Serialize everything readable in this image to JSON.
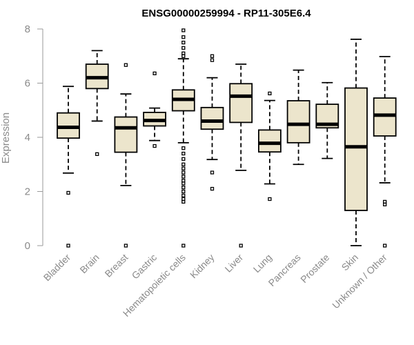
{
  "chart_data": {
    "type": "boxplot",
    "title": "ENSG00000259994 - RP11-305E6.4",
    "xlabel": "",
    "ylabel": "Expression",
    "ylim": [
      0,
      8
    ],
    "yticks": [
      0,
      2,
      4,
      6,
      8
    ],
    "grid": false,
    "box_fill": "#ece5cc",
    "categories": [
      "Bladder",
      "Brain",
      "Breast",
      "Gastric",
      "Hematopoietic cells",
      "Kidney",
      "Liver",
      "Lung",
      "Pancreas",
      "Prostate",
      "Skin",
      "Unknown / Other"
    ],
    "boxes": [
      {
        "category": "Bladder",
        "min": 2.68,
        "q1": 3.97,
        "median": 4.37,
        "q3": 4.9,
        "max": 5.88,
        "outliers": [
          1.95,
          0.0
        ]
      },
      {
        "category": "Brain",
        "min": 4.6,
        "q1": 5.8,
        "median": 6.2,
        "q3": 6.7,
        "max": 7.2,
        "outliers": [
          3.38
        ]
      },
      {
        "category": "Breast",
        "min": 2.22,
        "q1": 3.45,
        "median": 4.35,
        "q3": 4.75,
        "max": 5.6,
        "outliers": [
          6.67,
          0.0
        ]
      },
      {
        "category": "Gastric",
        "min": 3.88,
        "q1": 4.42,
        "median": 4.62,
        "q3": 4.92,
        "max": 5.08,
        "outliers": [
          6.36,
          3.68
        ]
      },
      {
        "category": "Hematopoietic cells",
        "min": 3.8,
        "q1": 4.98,
        "median": 5.4,
        "q3": 5.75,
        "max": 6.9,
        "outliers": [
          7.95,
          7.7,
          7.5,
          7.3,
          7.1,
          7.0,
          3.6,
          3.4,
          3.2,
          3.0,
          2.85,
          2.7,
          2.55,
          2.4,
          2.3,
          2.15,
          2.0,
          1.85,
          1.72,
          1.62,
          0.0
        ]
      },
      {
        "category": "Kidney",
        "min": 3.18,
        "q1": 4.3,
        "median": 4.6,
        "q3": 5.1,
        "max": 6.2,
        "outliers": [
          7.0,
          6.85,
          2.7,
          2.1
        ]
      },
      {
        "category": "Liver",
        "min": 2.78,
        "q1": 4.55,
        "median": 5.52,
        "q3": 5.98,
        "max": 6.7,
        "outliers": [
          0.0
        ]
      },
      {
        "category": "Lung",
        "min": 2.28,
        "q1": 3.46,
        "median": 3.78,
        "q3": 4.27,
        "max": 5.36,
        "outliers": [
          5.62,
          1.72
        ]
      },
      {
        "category": "Pancreas",
        "min": 3.0,
        "q1": 3.8,
        "median": 4.48,
        "q3": 5.35,
        "max": 6.48,
        "outliers": []
      },
      {
        "category": "Prostate",
        "min": 3.22,
        "q1": 4.35,
        "median": 4.48,
        "q3": 5.22,
        "max": 6.02,
        "outliers": []
      },
      {
        "category": "Skin",
        "min": 0.0,
        "q1": 1.3,
        "median": 3.65,
        "q3": 5.82,
        "max": 7.62,
        "outliers": []
      },
      {
        "category": "Unknown / Other",
        "min": 2.32,
        "q1": 4.05,
        "median": 4.82,
        "q3": 5.45,
        "max": 6.98,
        "outliers": [
          1.62,
          1.52,
          0.0
        ]
      }
    ]
  }
}
